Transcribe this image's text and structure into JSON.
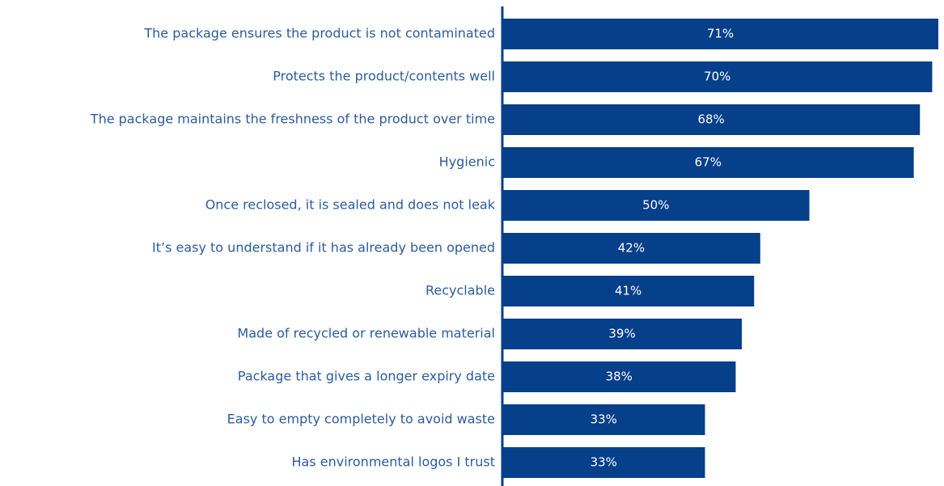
{
  "chart_data": {
    "type": "hbar",
    "categories": [
      "The package ensures the product is not contaminated",
      "Protects the product/contents well",
      "The package maintains the freshness of the product over time",
      "Hygienic",
      "Once reclosed, it is sealed and does not leak",
      "It’s easy to understand if it has already been opened",
      "Recyclable",
      "Made of recycled or renewable material",
      "Package that gives a longer expiry date",
      "Easy to empty completely to avoid waste",
      "Has environmental logos I trust"
    ],
    "values": [
      71,
      70,
      68,
      67,
      50,
      42,
      41,
      39,
      38,
      33,
      33
    ],
    "value_labels": [
      "71%",
      "70%",
      "68%",
      "67%",
      "50%",
      "42%",
      "41%",
      "39%",
      "38%",
      "33%",
      "33%"
    ],
    "color": "#063f8a"
  }
}
